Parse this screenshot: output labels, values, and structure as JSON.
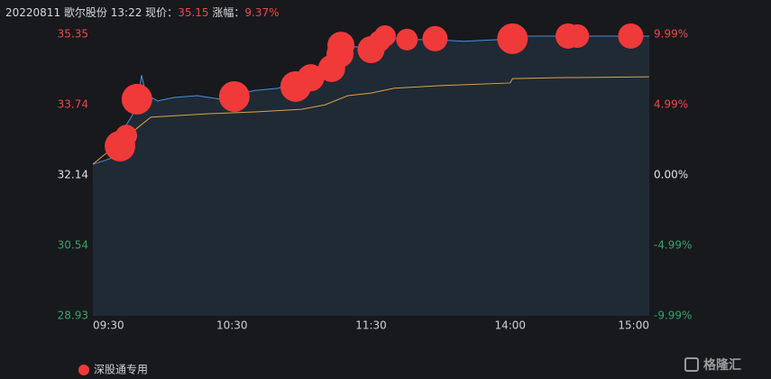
{
  "header": {
    "date": "20220811",
    "stock": "歌尔股份",
    "time": "13:22",
    "price_label": "现价：",
    "price": "35.15",
    "change_label": "涨幅：",
    "change": "9.37%"
  },
  "watermark": "格隆汇",
  "chart_data": {
    "type": "line",
    "xlim": [
      0,
      240
    ],
    "xticks": [
      {
        "value": 0,
        "label": "09:30"
      },
      {
        "value": 60,
        "label": "10:30"
      },
      {
        "value": 120,
        "label": "11:30"
      },
      {
        "value": 180,
        "label": "14:00"
      },
      {
        "value": 240,
        "label": "15:00"
      }
    ],
    "ylim": [
      28.93,
      35.35
    ],
    "yticks": [
      28.93,
      30.54,
      32.14,
      33.74,
      35.35
    ],
    "y2lim": [
      -9.99,
      9.99
    ],
    "y2ticks": [
      {
        "value": -9.99,
        "label": "-9.99%"
      },
      {
        "value": -4.99,
        "label": "-4.99%"
      },
      {
        "value": 0,
        "label": "0.00%"
      },
      {
        "value": 4.99,
        "label": "4.99%"
      },
      {
        "value": 9.99,
        "label": "9.99%"
      }
    ],
    "series": [
      {
        "kind": "price",
        "color": "#4a90d9",
        "x": [
          0,
          5,
          8,
          11,
          14,
          17,
          20,
          21,
          23,
          28,
          35,
          45,
          55,
          62,
          70,
          80,
          86,
          95,
          103,
          108,
          114,
          120,
          126,
          135,
          148,
          160,
          175,
          180,
          200,
          240
        ],
        "values": [
          32.39,
          32.47,
          32.53,
          32.84,
          33.25,
          33.5,
          34.07,
          34.42,
          33.97,
          33.83,
          33.91,
          33.95,
          33.87,
          33.99,
          34.07,
          34.12,
          34.24,
          34.4,
          34.61,
          35.1,
          35.06,
          35.06,
          35.27,
          35.23,
          35.23,
          35.19,
          35.23,
          35.31,
          35.31,
          35.31
        ]
      },
      {
        "kind": "average",
        "color": "#d8a24a",
        "x": [
          0,
          20,
          25,
          50,
          70,
          90,
          100,
          110,
          120,
          130,
          150,
          180,
          181,
          200,
          240
        ],
        "values": [
          32.39,
          33.25,
          33.46,
          33.54,
          33.58,
          33.64,
          33.74,
          33.95,
          34.01,
          34.12,
          34.18,
          34.24,
          34.34,
          34.36,
          34.38
        ]
      },
      {
        "kind": "bubble",
        "name": "深股通专用",
        "color": "#f03a3a",
        "x": [
          11.7,
          14.4,
          19,
          61,
          87.5,
          94,
          103,
          106.6,
          107,
          120,
          123.6,
          126,
          135.5,
          147.6,
          181,
          205,
          209,
          232
        ],
        "values": [
          32.8,
          33.04,
          33.87,
          33.93,
          34.16,
          34.36,
          34.57,
          34.9,
          35.1,
          35.0,
          35.19,
          35.31,
          35.23,
          35.25,
          35.25,
          35.31,
          35.31,
          35.31
        ],
        "size": [
          17,
          12,
          17,
          17,
          17,
          15,
          15,
          15,
          15,
          15,
          12,
          12,
          12,
          14,
          17,
          14,
          13,
          14
        ]
      }
    ]
  }
}
